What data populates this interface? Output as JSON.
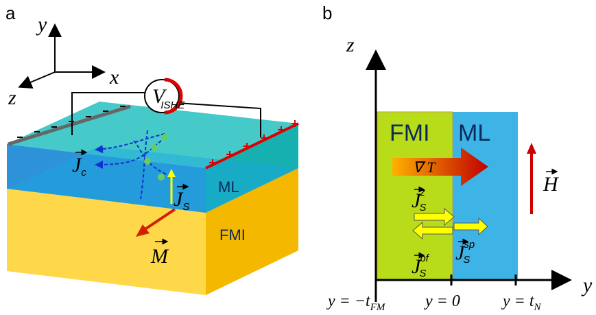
{
  "panel_a": {
    "label": "a",
    "axes": {
      "y": "y",
      "x": "x",
      "z": "z"
    },
    "voltage": {
      "symbol": "V",
      "subscript": "ISHE"
    },
    "charge_current": {
      "symbol": "J",
      "subscript": "c"
    },
    "spin_current": {
      "symbol": "J",
      "subscript": "S"
    },
    "layers": [
      "ML",
      "FMI"
    ],
    "magnetization": "M"
  },
  "panel_b": {
    "label": "b",
    "axes": {
      "z": "z",
      "y": "y"
    },
    "layers": [
      "FMI",
      "ML"
    ],
    "gradient": "∇ T",
    "field": "H",
    "currents": [
      {
        "symbol": "J",
        "subscript": "S",
        "superscript": "z"
      },
      {
        "symbol": "J",
        "subscript": "S",
        "superscript": "bf"
      },
      {
        "symbol": "J",
        "subscript": "S",
        "superscript": "sp"
      }
    ],
    "positions": [
      {
        "text": "y = −t",
        "subscript": "FM"
      },
      {
        "text": "y = 0"
      },
      {
        "text": "y = t",
        "subscript": "N"
      }
    ]
  }
}
